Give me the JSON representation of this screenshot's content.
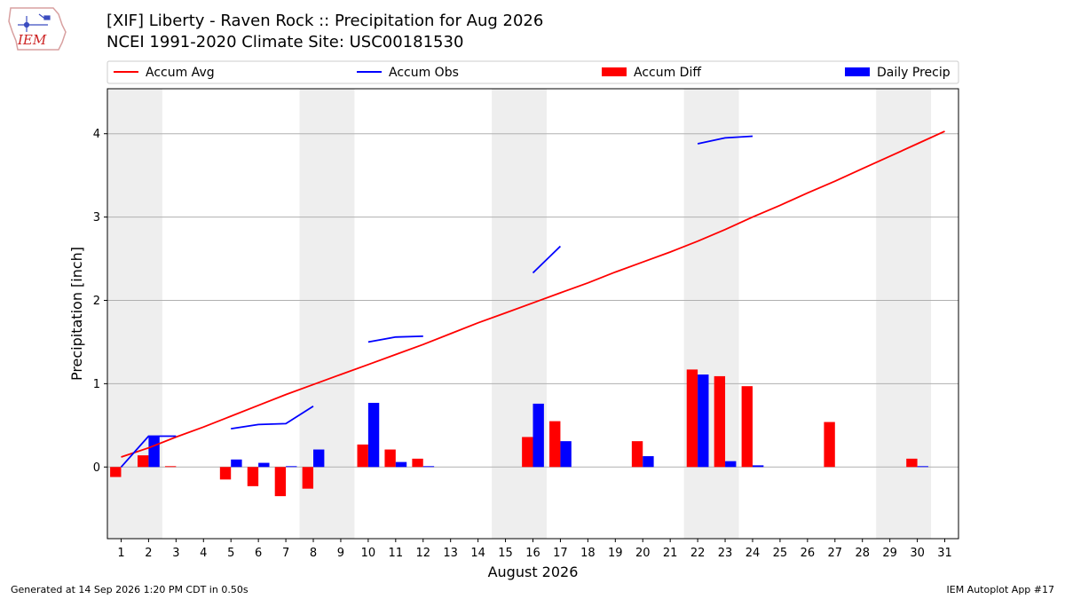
{
  "header": {
    "title_line1": "[XIF] Liberty - Raven Rock :: Precipitation for Aug 2026",
    "title_line2": "NCEI 1991-2020 Climate Site: USC00181530",
    "logo_text": "IEM"
  },
  "footer": {
    "generated": "Generated at 14 Sep 2026 1:20 PM CDT in 0.50s",
    "app": "IEM Autoplot App #17"
  },
  "colors": {
    "avg": "#ff0000",
    "obs": "#0000ff",
    "diff": "#ff0000",
    "daily": "#0000ff",
    "weekend": "#eeeeee"
  },
  "chart_data": {
    "type": "bar",
    "xlabel": "August 2026",
    "ylabel": "Precipitation [inch]",
    "xlim": [
      0.5,
      31.5
    ],
    "ylim": [
      -0.86,
      4.54
    ],
    "yticks": [
      0,
      1,
      2,
      3,
      4
    ],
    "grid": "y",
    "legend": {
      "placement": "top",
      "entries": [
        {
          "label": "Accum Avg",
          "kind": "line",
          "color": "#ff0000"
        },
        {
          "label": "Accum Obs",
          "kind": "line",
          "color": "#0000ff"
        },
        {
          "label": "Accum Diff",
          "kind": "bar",
          "color": "#ff0000"
        },
        {
          "label": "Daily Precip",
          "kind": "bar",
          "color": "#0000ff"
        }
      ]
    },
    "weekend_bands": [
      [
        0.5,
        2.5
      ],
      [
        7.5,
        9.5
      ],
      [
        14.5,
        16.5
      ],
      [
        21.5,
        23.5
      ],
      [
        28.5,
        30.5
      ]
    ],
    "days": [
      1,
      2,
      3,
      4,
      5,
      6,
      7,
      8,
      9,
      10,
      11,
      12,
      13,
      14,
      15,
      16,
      17,
      18,
      19,
      20,
      21,
      22,
      23,
      24,
      25,
      26,
      27,
      28,
      29,
      30,
      31
    ],
    "series": [
      {
        "name": "Accum Avg",
        "type": "line",
        "color": "#ff0000",
        "values": [
          0.12,
          0.23,
          0.36,
          0.48,
          0.61,
          0.74,
          0.87,
          0.99,
          1.11,
          1.23,
          1.35,
          1.47,
          1.6,
          1.73,
          1.85,
          1.97,
          2.09,
          2.21,
          2.34,
          2.46,
          2.58,
          2.71,
          2.85,
          3.0,
          3.14,
          3.29,
          3.43,
          3.58,
          3.73,
          3.88,
          4.03
        ]
      },
      {
        "name": "Accum Obs",
        "type": "line",
        "color": "#0000ff",
        "values": [
          0.0,
          0.37,
          0.37,
          null,
          0.46,
          0.51,
          0.52,
          0.73,
          null,
          1.5,
          1.56,
          1.57,
          null,
          null,
          null,
          2.33,
          2.65,
          null,
          null,
          null,
          null,
          3.88,
          3.95,
          3.97,
          null,
          null,
          null,
          null,
          null,
          null,
          null
        ]
      },
      {
        "name": "Accum Diff",
        "type": "bar",
        "color": "#ff0000",
        "values": [
          -0.12,
          0.14,
          0.01,
          0,
          -0.15,
          -0.23,
          -0.35,
          -0.26,
          0,
          0.27,
          0.21,
          0.1,
          0,
          0,
          0,
          0.36,
          0.55,
          0,
          0,
          0.31,
          0,
          1.17,
          1.09,
          0.97,
          0,
          0,
          0.54,
          0,
          0,
          0.1,
          0
        ]
      },
      {
        "name": "Daily Precip",
        "type": "bar",
        "color": "#0000ff",
        "values": [
          0,
          0.37,
          0,
          0,
          0.09,
          0.05,
          0.01,
          0.21,
          0,
          0.77,
          0.06,
          0.01,
          0,
          0,
          0,
          0.76,
          0.31,
          0,
          0,
          0.13,
          0,
          1.11,
          0.07,
          0.02,
          0,
          0,
          0,
          0,
          0,
          0.01,
          0
        ]
      }
    ]
  }
}
